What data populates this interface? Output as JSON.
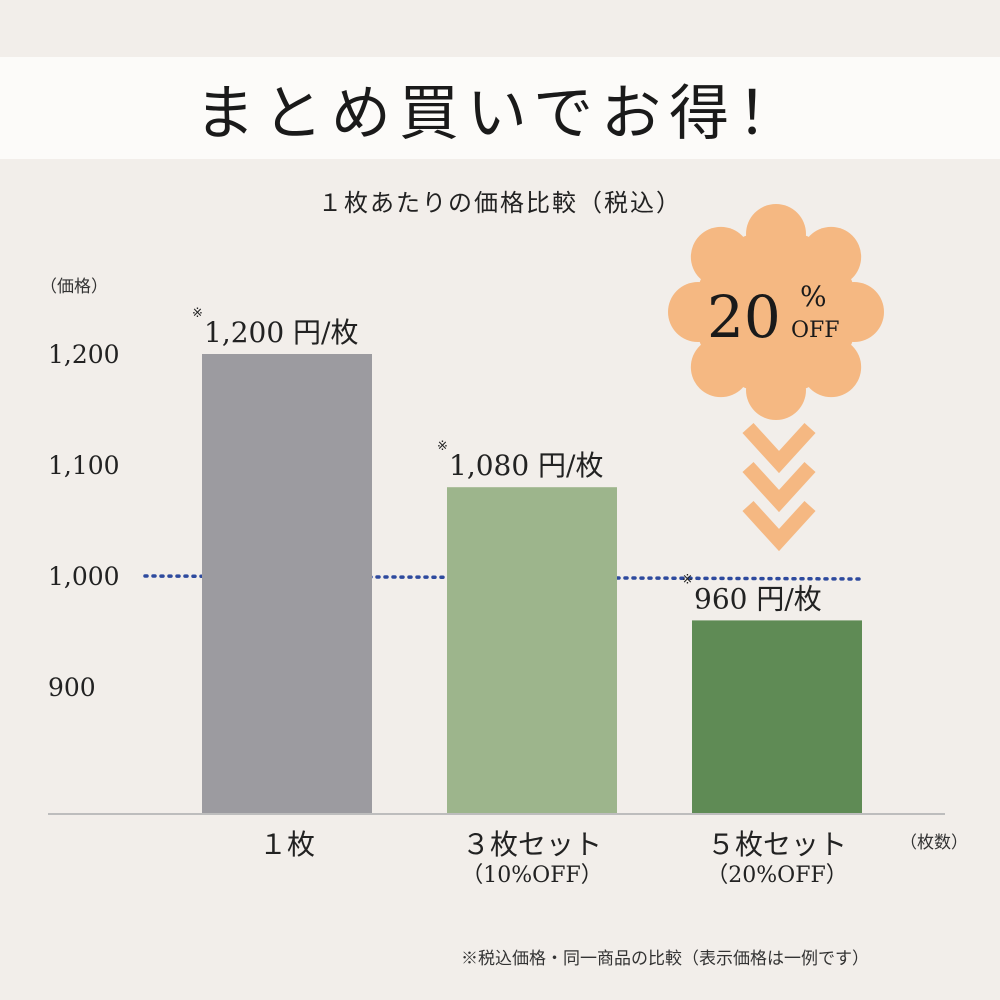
{
  "header": {
    "title": "まとめ買いでお得！"
  },
  "subtitle": "１枚あたりの価格比較（税込）",
  "badge": {
    "number": "20",
    "percent": "%",
    "off": "OFF",
    "color": "#f5b882"
  },
  "footnote": "※税込価格・同一商品の比較（表示価格は一例です）",
  "colors": {
    "arrow": "#f5b882",
    "reference_line": "#2e4a9e",
    "axis": "#bdbdbd"
  },
  "chart_data": {
    "type": "bar",
    "ylabel": "（価格）",
    "xunit": "（枚数）",
    "ylim": [
      800,
      1200
    ],
    "yticks": [
      {
        "value": 1200,
        "label": "1,200"
      },
      {
        "value": 1100,
        "label": "1,100"
      },
      {
        "value": 1000,
        "label": "1,000"
      },
      {
        "value": 900,
        "label": "900"
      }
    ],
    "reference_line": 1000,
    "bars": [
      {
        "category": "１枚",
        "sub": "",
        "value": 1200,
        "label": "1,200 円/枚",
        "mark": "※",
        "color": "#9c9ba0"
      },
      {
        "category": "３枚セット",
        "sub": "（10%OFF）",
        "value": 1080,
        "label": "1,080 円/枚",
        "mark": "※",
        "color": "#9db58c"
      },
      {
        "category": "５枚セット",
        "sub": "（20%OFF）",
        "value": 960,
        "label": "960 円/枚",
        "mark": "※",
        "color": "#5f8b55"
      }
    ]
  }
}
